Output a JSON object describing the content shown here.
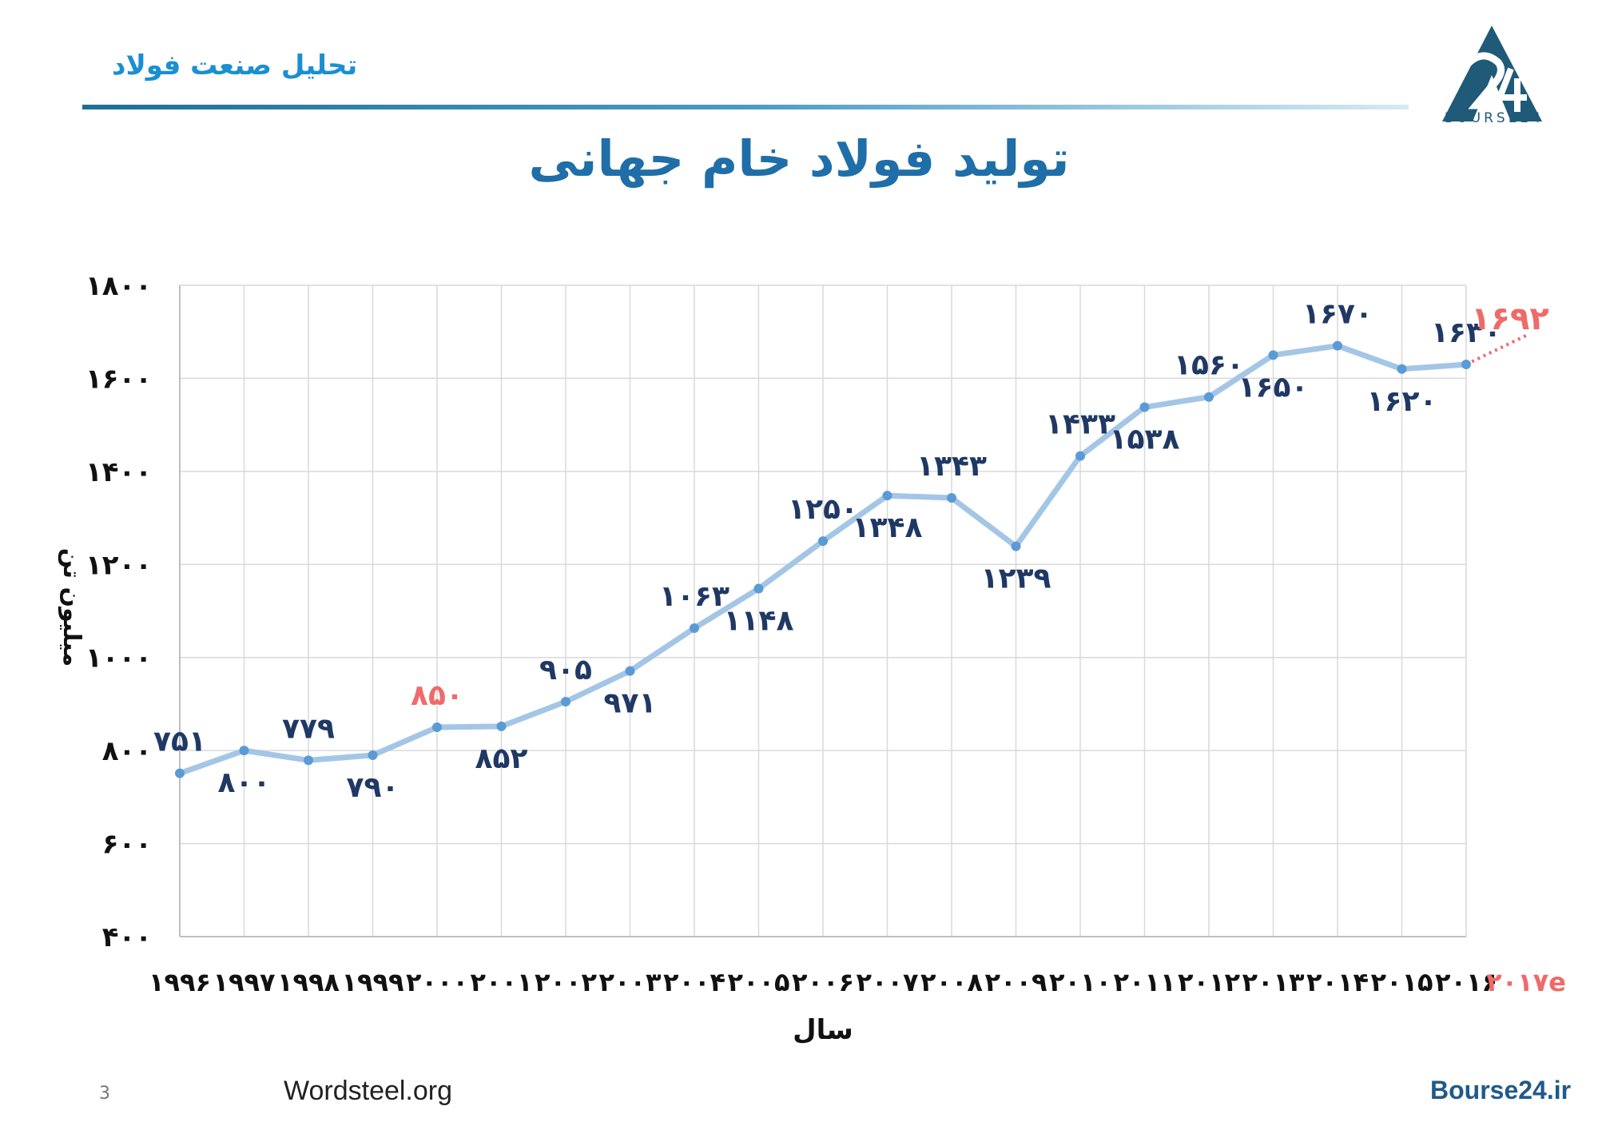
{
  "header": {
    "section_title": "تحلیل صنعت فولاد",
    "logo_text": "BOURSE24",
    "accent_color": "#1f6e96"
  },
  "title": "تولید فولاد خام جهانی",
  "footer": {
    "page_number": "3",
    "source": "Wordsteel.org",
    "site": "Bourse24.ir"
  },
  "chart_data": {
    "type": "line",
    "xlabel": "سال",
    "ylabel": "میلیون تن",
    "ylim": [
      400,
      1800
    ],
    "yticks": [
      "۴۰۰",
      "۶۰۰",
      "۸۰۰",
      "۱۰۰۰",
      "۱۲۰۰",
      "۱۴۰۰",
      "۱۶۰۰",
      "۱۸۰۰"
    ],
    "ytick_values": [
      400,
      600,
      800,
      1000,
      1200,
      1400,
      1600,
      1800
    ],
    "categories": [
      "۱۹۹۶",
      "۱۹۹۷",
      "۱۹۹۸",
      "۱۹۹۹",
      "۲۰۰۰",
      "۲۰۰۱",
      "۲۰۰۲",
      "۲۰۰۳",
      "۲۰۰۴",
      "۲۰۰۵",
      "۲۰۰۶",
      "۲۰۰۷",
      "۲۰۰۸",
      "۲۰۰۹",
      "۲۰۱۰",
      "۲۰۱۱",
      "۲۰۱۲",
      "۲۰۱۳",
      "۲۰۱۴",
      "۲۰۱۵",
      "۲۰۱۶"
    ],
    "values": [
      751,
      800,
      779,
      790,
      850,
      852,
      905,
      971,
      1063,
      1148,
      1250,
      1348,
      1343,
      1239,
      1433,
      1538,
      1560,
      1650,
      1670,
      1620,
      1630
    ],
    "labels": [
      "۷۵۱",
      "۸۰۰",
      "۷۷۹",
      "۷۹۰",
      "۸۵۰",
      "۸۵۲",
      "۹۰۵",
      "۹۷۱",
      "۱۰۶۳",
      "۱۱۴۸",
      "۱۲۵۰",
      "۱۳۴۸",
      "۱۳۴۳",
      "۱۲۳۹",
      "۱۴۳۳",
      "۱۵۳۸",
      "۱۵۶۰",
      "۱۶۵۰",
      "۱۶۷۰",
      "۱۶۲۰",
      "۱۶۳۰"
    ],
    "label_positions": [
      "above",
      "below",
      "above",
      "below",
      "above",
      "below",
      "above",
      "below",
      "above",
      "below",
      "above",
      "below",
      "above",
      "below",
      "above",
      "below",
      "above",
      "below",
      "above",
      "below",
      "above"
    ],
    "highlight_label_index": 4,
    "estimate": {
      "category": "۲۰۱۷e",
      "value": 1692,
      "label": "۱۶۹۲"
    },
    "grid": true,
    "line_color": "#a4c6e6",
    "point_color": "#5b9bd5",
    "label_color": "#1f3864",
    "estimate_color": "#f06a6a"
  }
}
